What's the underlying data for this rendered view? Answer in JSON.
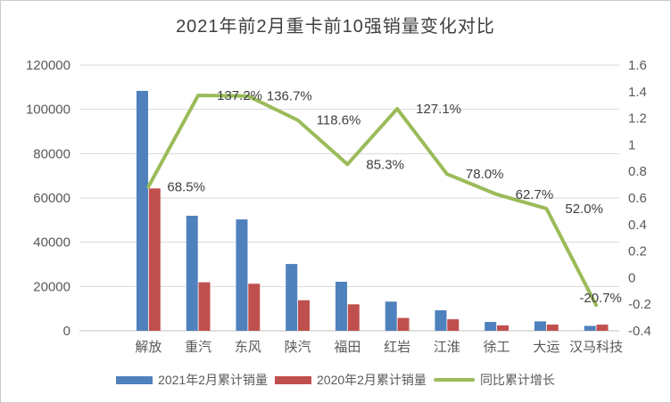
{
  "window": {
    "background": "#ffffff",
    "border_color": "#cbcbcb"
  },
  "chart_data": {
    "type": "combo-bar-line",
    "title": "2021年前2月重卡前10强销量变化对比",
    "categories": [
      "解放",
      "重汽",
      "东风",
      "陕汽",
      "福田",
      "红岩",
      "江淮",
      "徐工",
      "大运",
      "汉马科技"
    ],
    "series": [
      {
        "name": "2021年2月累计销量",
        "type": "bar",
        "axis": "left",
        "color": "#4F81BD",
        "values": [
          108350,
          51950,
          50300,
          30170,
          22140,
          13170,
          9260,
          3990,
          4260,
          2200
        ]
      },
      {
        "name": "2020年2月累计销量",
        "type": "bar",
        "axis": "left",
        "color": "#C0504D",
        "values": [
          64300,
          21900,
          21250,
          13800,
          11950,
          5800,
          5200,
          2450,
          2800,
          2780
        ]
      },
      {
        "name": "同比累计增长",
        "type": "line",
        "axis": "right",
        "color": "#9BBB59",
        "values_percent": [
          68.5,
          137.2,
          136.7,
          118.6,
          85.3,
          127.1,
          78.0,
          62.7,
          52.0,
          -20.7
        ],
        "point_labels": [
          "68.5%",
          "137.2%",
          "136.7%",
          "118.6%",
          "85.3%",
          "127.1%",
          "78.0%",
          "62.7%",
          "52.0%",
          "-20.7%"
        ]
      }
    ],
    "left_axis": {
      "min": 0,
      "max": 120000,
      "ticks": [
        "0",
        "20000",
        "40000",
        "60000",
        "80000",
        "100000",
        "120000"
      ]
    },
    "right_axis": {
      "min": -0.4,
      "max": 1.6,
      "ticks": [
        "-0.4",
        "-0.2",
        "0",
        "0.2",
        "0.4",
        "0.6",
        "0.8",
        "1",
        "1.2",
        "1.4",
        "1.6"
      ]
    },
    "grid": true,
    "legend_position": "bottom"
  },
  "colors": {
    "grid": "#D9D9D9",
    "axis_line": "#C0C0C0",
    "tick_text": "#595959",
    "category_text": "#595959",
    "data_label_text": "#404040",
    "title_text": "#3f3f3f"
  }
}
